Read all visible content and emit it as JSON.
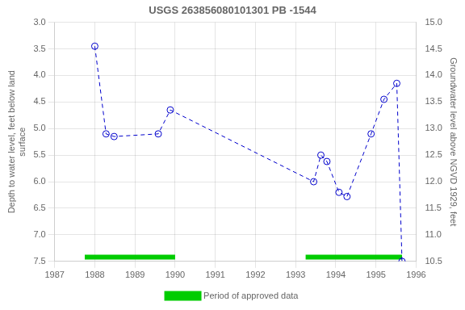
{
  "chart_data": {
    "type": "line",
    "title": "USGS 263856080101301 PB -1544",
    "x_label": null,
    "y_label": "Depth to water level, feet below land\nsurface",
    "y2_label": "Groundwater level above NGVD 1929, feet",
    "x": [
      1988.0,
      1988.28,
      1988.48,
      1989.58,
      1989.88,
      1993.45,
      1993.63,
      1993.78,
      1994.08,
      1994.28,
      1994.88,
      1995.2,
      1995.52,
      1995.65
    ],
    "series": [
      {
        "values": [
          3.45,
          5.1,
          5.15,
          5.1,
          4.65,
          6.0,
          5.5,
          5.62,
          6.2,
          6.28,
          5.1,
          4.45,
          4.15,
          7.5
        ],
        "color": "#0000cc",
        "marker": "circle",
        "line_style": "dashed"
      },
      {
        "name": "Period of approved data",
        "type": "bar",
        "orientation": "horizontal",
        "color": "#00cc00",
        "ranges": [
          [
            1987.75,
            1990.0
          ],
          [
            1993.25,
            1995.65
          ]
        ],
        "y": 7.42
      }
    ],
    "xlim": [
      1987,
      1996
    ],
    "xticks": [
      1987,
      1988,
      1989,
      1990,
      1991,
      1992,
      1993,
      1994,
      1995,
      1996
    ],
    "ylim": [
      7.5,
      3.0
    ],
    "yticks": [
      {
        "value": 3,
        "label": "3.0"
      },
      3.5,
      {
        "value": 4,
        "label": "4.0"
      },
      4.5,
      {
        "value": 5,
        "label": "5.0"
      },
      5.5,
      {
        "value": 6,
        "label": "6.0"
      },
      6.5,
      {
        "value": 7,
        "label": "7.0"
      },
      7.5
    ],
    "y2lim": [
      10.5,
      15.0
    ],
    "y2ticks": [
      10.5,
      {
        "value": 11,
        "label": "11.0"
      },
      11.5,
      {
        "value": 12,
        "label": "12.0"
      },
      12.5,
      {
        "value": 13,
        "label": "13.0"
      },
      13.5,
      {
        "value": 14,
        "label": "14.0"
      },
      14.5,
      {
        "value": 15,
        "label": "15.0"
      }
    ],
    "grid": true,
    "legend": "bottom"
  }
}
